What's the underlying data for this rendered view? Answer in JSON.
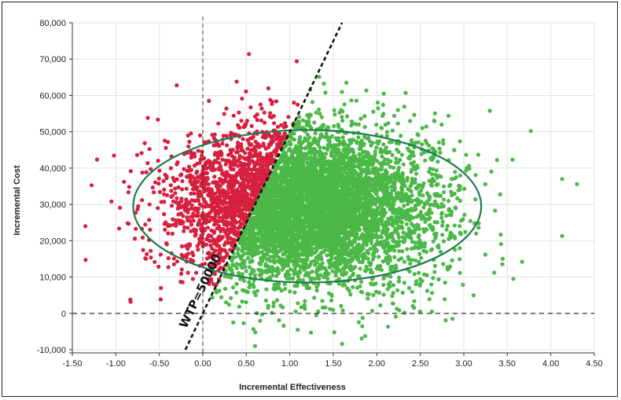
{
  "chart_data": {
    "type": "scatter",
    "title": "",
    "xlabel": "Incremental Effectiveness",
    "ylabel": "Incremental Cost",
    "xlim": [
      -1.5,
      4.5
    ],
    "ylim": [
      -10000,
      80000
    ],
    "x_ticks": [
      -1.5,
      -1.0,
      -0.5,
      0.0,
      0.5,
      1.0,
      1.5,
      2.0,
      2.5,
      3.0,
      3.5,
      4.0,
      4.5
    ],
    "x_tick_labels": [
      "-1.50",
      "-1.00",
      "-0.50",
      "0.00",
      "0.50",
      "1.00",
      "1.50",
      "2.00",
      "2.50",
      "3.00",
      "3.50",
      "4.00",
      "4.50"
    ],
    "y_ticks": [
      -10000,
      0,
      10000,
      20000,
      30000,
      40000,
      50000,
      60000,
      70000,
      80000
    ],
    "y_tick_labels": [
      "-10,000",
      "0",
      "10,000",
      "20,000",
      "30,000",
      "40,000",
      "50,000",
      "60,000",
      "70,000",
      "80,000"
    ],
    "grid": true,
    "wtp_line": {
      "label": "WTP=50000",
      "slope": 50000,
      "intercept": 0,
      "style": "dashed"
    },
    "reference_lines": {
      "x": 0,
      "y": 0,
      "style": "dashed"
    },
    "ellipse": {
      "center": [
        1.2,
        29500
      ],
      "semi_axis_x": 2.0,
      "semi_axis_y": 21000,
      "color": "#1e7a4c"
    },
    "simulation": {
      "n_points": 6500,
      "mean_effect": 1.2,
      "sd_effect": 0.72,
      "mean_cost": 29500,
      "sd_cost": 10500,
      "seed": 7
    },
    "series": [
      {
        "rule": "cost above WTP line",
        "color": "#d6203f"
      },
      {
        "rule": "cost below WTP line",
        "color": "#4cb848"
      }
    ],
    "notable_points": [
      {
        "x": -1.35,
        "y": 24000
      },
      {
        "x": -1.05,
        "y": 30800
      },
      {
        "x": -0.3,
        "y": 62800
      },
      {
        "x": 0.53,
        "y": 71400
      },
      {
        "x": 1.08,
        "y": 69400
      },
      {
        "x": 1.65,
        "y": 63500
      },
      {
        "x": 2.08,
        "y": 60500
      },
      {
        "x": 3.77,
        "y": 50200
      },
      {
        "x": 4.3,
        "y": 35600
      },
      {
        "x": 4.13,
        "y": 37000
      },
      {
        "x": 4.13,
        "y": 21300
      },
      {
        "x": 0.6,
        "y": -9000
      },
      {
        "x": 1.6,
        "y": -8400
      },
      {
        "x": 0.93,
        "y": -3400
      },
      {
        "x": 0.47,
        "y": -2700
      },
      {
        "x": 2.87,
        "y": -1500
      },
      {
        "x": 2.23,
        "y": 1300
      },
      {
        "x": 2.43,
        "y": 1500
      },
      {
        "x": 2.78,
        "y": 3900
      },
      {
        "x": 3.67,
        "y": 14200
      },
      {
        "x": 3.35,
        "y": 11200
      }
    ]
  }
}
